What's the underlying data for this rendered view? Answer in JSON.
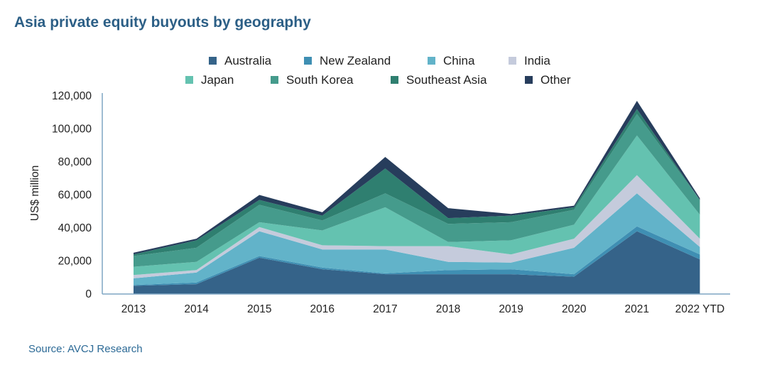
{
  "title": "Asia private equity buyouts by geography",
  "source": "Source: AVCJ Research",
  "chart_data": {
    "type": "area",
    "stacked": true,
    "categories": [
      "2013",
      "2014",
      "2015",
      "2016",
      "2017",
      "2018",
      "2019",
      "2020",
      "2021",
      "2022 YTD"
    ],
    "ylabel": "US$ million",
    "xlabel": "",
    "ylim": [
      0,
      120000
    ],
    "yticks": [
      0,
      20000,
      40000,
      60000,
      80000,
      100000,
      120000
    ],
    "ytick_labels": [
      "0",
      "20,000",
      "40,000",
      "60,000",
      "80,000",
      "100,000",
      "120,000"
    ],
    "legend_position": "top-center",
    "grid": false,
    "series": [
      {
        "name": "Australia",
        "color": "#356389",
        "values": [
          5000,
          6000,
          22000,
          15000,
          12000,
          12000,
          12000,
          10500,
          38000,
          21000
        ]
      },
      {
        "name": "New Zealand",
        "color": "#3f8fb3",
        "values": [
          500,
          1000,
          1000,
          1000,
          500,
          2500,
          3000,
          1500,
          3000,
          3000
        ]
      },
      {
        "name": "China",
        "color": "#62b3c9",
        "values": [
          4000,
          6000,
          15000,
          11000,
          14500,
          5000,
          4000,
          16000,
          20000,
          4500
        ]
      },
      {
        "name": "India",
        "color": "#c5cbdc",
        "values": [
          2000,
          1500,
          2500,
          2500,
          2000,
          9500,
          5000,
          5500,
          11000,
          5000
        ]
      },
      {
        "name": "Japan",
        "color": "#64c2b0",
        "values": [
          5000,
          5000,
          3000,
          9000,
          23500,
          2500,
          8500,
          8500,
          24000,
          14500
        ]
      },
      {
        "name": "South Korea",
        "color": "#459b8c",
        "values": [
          6500,
          8500,
          10500,
          6000,
          8500,
          11000,
          11000,
          9000,
          13000,
          9000
        ]
      },
      {
        "name": "Southeast Asia",
        "color": "#2f7f70",
        "values": [
          1000,
          4500,
          3000,
          3000,
          15000,
          3500,
          4000,
          1500,
          3000,
          0
        ]
      },
      {
        "name": "Other",
        "color": "#273d5c",
        "values": [
          1000,
          1000,
          3000,
          2000,
          7000,
          6000,
          1000,
          1000,
          5000,
          1000
        ]
      }
    ]
  }
}
